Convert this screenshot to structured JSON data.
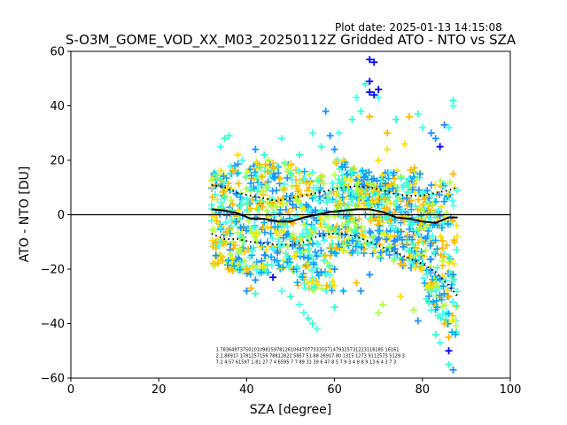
{
  "plot_date": "Plot date: 2025-01-13 14:15:08",
  "chart_data": {
    "type": "scatter",
    "title": "S-O3M_GOME_VOD_XX_M03_20250112Z Gridded ATO - NTO vs SZA",
    "xlabel": "SZA [degree]",
    "ylabel": "ATO - NTO [DU]",
    "xlim": [
      0,
      100
    ],
    "ylim": [
      -60,
      60
    ],
    "xticks": [
      "0",
      "20",
      "40",
      "60",
      "80",
      "100"
    ],
    "yticks": [
      "60",
      "40",
      "20",
      "0",
      "−20",
      "−40",
      "−60"
    ],
    "grid": false,
    "legend": "none",
    "marker": "plus",
    "zero_line": 0,
    "colors": {
      "dark_blue": "#0000ff",
      "blue": "#1e90ff",
      "azure": "#00aaff",
      "cyan": "#33ffcc",
      "aqua": "#44ffee",
      "lime": "#b0ff40",
      "yellow": "#ffe000",
      "orange": "#ffb800",
      "mean_line": "#000000",
      "std_line": "#000000"
    },
    "mean_curve": {
      "x": [
        32,
        35,
        38,
        41,
        44,
        47,
        50,
        53,
        56,
        59,
        62,
        65,
        68,
        71,
        74,
        77,
        80,
        83,
        86,
        88
      ],
      "y": [
        2,
        1.5,
        0.5,
        -1.5,
        -1.5,
        -2.5,
        -2.5,
        -1,
        0,
        1,
        1.5,
        2,
        2,
        1,
        -1,
        -1.5,
        -2.5,
        -3,
        -1,
        -1
      ]
    },
    "upper_std_curve": {
      "x": [
        32,
        35,
        38,
        41,
        44,
        47,
        50,
        53,
        56,
        59,
        62,
        65,
        68,
        71,
        74,
        77,
        80,
        83,
        86,
        88
      ],
      "y": [
        11,
        10,
        8,
        7,
        6,
        5,
        6,
        7,
        8,
        9,
        10,
        10.5,
        10,
        9,
        7.5,
        7,
        7,
        8,
        9,
        10
      ]
    },
    "lower_std_curve": {
      "x": [
        32,
        35,
        38,
        41,
        44,
        47,
        50,
        53,
        56,
        59,
        62,
        65,
        68,
        71,
        74,
        77,
        80,
        83,
        86,
        88
      ],
      "y": [
        -7,
        -9,
        -9,
        -10,
        -10.5,
        -11,
        -11,
        -10,
        -8,
        -7,
        -7,
        -8,
        -10,
        -12,
        -14,
        -16,
        -18,
        -21,
        -26,
        -30
      ]
    },
    "points": [
      {
        "x": 33,
        "y": 15,
        "c": "cyan"
      },
      {
        "x": 34,
        "y": 25,
        "c": "aqua"
      },
      {
        "x": 35,
        "y": 28,
        "c": "cyan"
      },
      {
        "x": 36,
        "y": 29,
        "c": "cyan"
      },
      {
        "x": 33,
        "y": -10,
        "c": "orange"
      },
      {
        "x": 34,
        "y": -15,
        "c": "yellow"
      },
      {
        "x": 33,
        "y": -15,
        "c": "blue"
      },
      {
        "x": 36,
        "y": -20,
        "c": "orange"
      },
      {
        "x": 38,
        "y": -18,
        "c": "yellow"
      },
      {
        "x": 40,
        "y": -20,
        "c": "orange"
      },
      {
        "x": 41,
        "y": -27,
        "c": "orange"
      },
      {
        "x": 42,
        "y": -24,
        "c": "blue"
      },
      {
        "x": 40,
        "y": -28,
        "c": "blue"
      },
      {
        "x": 42,
        "y": -29,
        "c": "cyan"
      },
      {
        "x": 44,
        "y": 22,
        "c": "cyan"
      },
      {
        "x": 46,
        "y": -23,
        "c": "dark_blue"
      },
      {
        "x": 48,
        "y": 28,
        "c": "aqua"
      },
      {
        "x": 48,
        "y": -28,
        "c": "aqua"
      },
      {
        "x": 50,
        "y": -30,
        "c": "cyan"
      },
      {
        "x": 52,
        "y": -33,
        "c": "aqua"
      },
      {
        "x": 53,
        "y": -36,
        "c": "aqua"
      },
      {
        "x": 54,
        "y": -38,
        "c": "cyan"
      },
      {
        "x": 55,
        "y": -40,
        "c": "cyan"
      },
      {
        "x": 56,
        "y": -42,
        "c": "aqua"
      },
      {
        "x": 55,
        "y": 30,
        "c": "aqua"
      },
      {
        "x": 57,
        "y": 25,
        "c": "cyan"
      },
      {
        "x": 58,
        "y": 38,
        "c": "blue"
      },
      {
        "x": 59,
        "y": 29,
        "c": "blue"
      },
      {
        "x": 60,
        "y": -34,
        "c": "cyan"
      },
      {
        "x": 61,
        "y": 30,
        "c": "aqua"
      },
      {
        "x": 62,
        "y": 20,
        "c": "yellow"
      },
      {
        "x": 64,
        "y": 35,
        "c": "cyan"
      },
      {
        "x": 65,
        "y": 43,
        "c": "aqua"
      },
      {
        "x": 66,
        "y": 38,
        "c": "cyan"
      },
      {
        "x": 67,
        "y": 48,
        "c": "cyan"
      },
      {
        "x": 68,
        "y": 45,
        "c": "dark_blue"
      },
      {
        "x": 68,
        "y": 49,
        "c": "dark_blue"
      },
      {
        "x": 68,
        "y": 57,
        "c": "dark_blue"
      },
      {
        "x": 69,
        "y": 56,
        "c": "dark_blue"
      },
      {
        "x": 69,
        "y": 44,
        "c": "dark_blue"
      },
      {
        "x": 70,
        "y": 46,
        "c": "dark_blue"
      },
      {
        "x": 70,
        "y": 43,
        "c": "aqua"
      },
      {
        "x": 68,
        "y": 36,
        "c": "orange"
      },
      {
        "x": 72,
        "y": 30,
        "c": "orange"
      },
      {
        "x": 70,
        "y": 20,
        "c": "yellow"
      },
      {
        "x": 74,
        "y": 35,
        "c": "cyan"
      },
      {
        "x": 77,
        "y": 36,
        "c": "orange"
      },
      {
        "x": 79,
        "y": 37,
        "c": "cyan"
      },
      {
        "x": 80,
        "y": 32,
        "c": "aqua"
      },
      {
        "x": 82,
        "y": 30,
        "c": "blue"
      },
      {
        "x": 83,
        "y": 28,
        "c": "blue"
      },
      {
        "x": 85,
        "y": 33,
        "c": "blue"
      },
      {
        "x": 86,
        "y": 32,
        "c": "aqua"
      },
      {
        "x": 87,
        "y": 40,
        "c": "aqua"
      },
      {
        "x": 87,
        "y": 42,
        "c": "cyan"
      },
      {
        "x": 84,
        "y": 25,
        "c": "dark_blue"
      },
      {
        "x": 87,
        "y": 15,
        "c": "orange"
      },
      {
        "x": 87,
        "y": -22,
        "c": "blue"
      },
      {
        "x": 86,
        "y": -30,
        "c": "orange"
      },
      {
        "x": 85,
        "y": -40,
        "c": "orange"
      },
      {
        "x": 86,
        "y": -45,
        "c": "orange"
      },
      {
        "x": 86,
        "y": -50,
        "c": "dark_blue"
      },
      {
        "x": 86,
        "y": -55,
        "c": "cyan"
      },
      {
        "x": 87,
        "y": -57,
        "c": "blue"
      },
      {
        "x": 84,
        "y": -47,
        "c": "aqua"
      },
      {
        "x": 83,
        "y": -44,
        "c": "cyan"
      },
      {
        "x": 82,
        "y": -35,
        "c": "aqua"
      },
      {
        "x": 79,
        "y": -39,
        "c": "blue"
      },
      {
        "x": 78,
        "y": -35,
        "c": "lime"
      },
      {
        "x": 75,
        "y": -30,
        "c": "yellow"
      },
      {
        "x": 71,
        "y": -33,
        "c": "lime"
      },
      {
        "x": 70,
        "y": -36,
        "c": "lime"
      },
      {
        "x": 68,
        "y": -22,
        "c": "blue"
      },
      {
        "x": 66,
        "y": -28,
        "c": "blue"
      },
      {
        "x": 65,
        "y": -25,
        "c": "orange"
      },
      {
        "x": 62,
        "y": -28,
        "c": "azure"
      },
      {
        "x": 60,
        "y": -20,
        "c": "blue"
      },
      {
        "x": 58,
        "y": -22,
        "c": "cyan"
      },
      {
        "x": 45,
        "y": 20,
        "c": "lime"
      },
      {
        "x": 50,
        "y": 18,
        "c": "yellow"
      },
      {
        "x": 52,
        "y": 22,
        "c": "cyan"
      },
      {
        "x": 38,
        "y": 22,
        "c": "yellow"
      },
      {
        "x": 39,
        "y": 20,
        "c": "aqua"
      },
      {
        "x": 42,
        "y": 24,
        "c": "blue"
      },
      {
        "x": 60,
        "y": 24,
        "c": "blue"
      },
      {
        "x": 76,
        "y": 26,
        "c": "yellow"
      },
      {
        "x": 72,
        "y": 24,
        "c": "yellow"
      },
      {
        "x": 47,
        "y": -14,
        "c": "blue"
      },
      {
        "x": 54,
        "y": -16,
        "c": "azure"
      },
      {
        "x": 64,
        "y": -14,
        "c": "azure"
      },
      {
        "x": 75,
        "y": -18,
        "c": "orange"
      },
      {
        "x": 80,
        "y": -20,
        "c": "yellow"
      },
      {
        "x": 82,
        "y": -25,
        "c": "orange"
      }
    ],
    "annotations": [
      "1.7836497375010109825978126106470773335571479325731223116185 16161",
      "2.2.88917 1781257156 78812822 5857 51.88 26917 80 1315 1273 9112573 5129 3",
      "7.2 4.57 61597 1.81 27 7 4 6595 7 7 89 31 39 6 47 8 5 7 9 3 4 8 8 9 13 6 4 3 7 3"
    ]
  }
}
